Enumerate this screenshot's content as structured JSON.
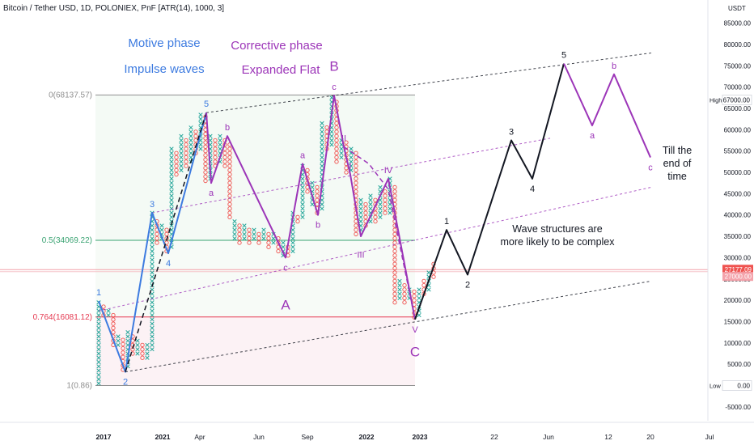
{
  "header": {
    "title": "Bitcoin / Tether USD, 1D, POLONIEX, PnF [ATR(14), 1000, 3]"
  },
  "colors": {
    "blue": "#3d7be0",
    "purple": "#9c35b8",
    "black": "#131722",
    "up": "#26a69a",
    "down": "#ef5350",
    "red_line": "#e53950",
    "green_line": "#3aa372"
  },
  "chart_data": {
    "type": "line",
    "title": "Bitcoin / Tether USD, 1D, POLONIEX, PnF [ATR(14), 1000, 3]",
    "currency_label": "USDT",
    "y_ticks": [
      "-5000.00",
      "0.00",
      "5000.00",
      "10000.00",
      "15000.00",
      "20000.00",
      "25000.00",
      "30000.00",
      "35000.00",
      "40000.00",
      "45000.00",
      "50000.00",
      "55000.00",
      "60000.00",
      "65000.00",
      "70000.00",
      "75000.00",
      "80000.00",
      "85000.00"
    ],
    "x_ticks": [
      "2017",
      "2021",
      "Apr",
      "Jun",
      "Sep",
      "2022",
      "2023",
      "22",
      "Jun",
      "12",
      "20",
      "Jul"
    ],
    "price_badges": [
      {
        "label": "High",
        "value": "67000.00",
        "y": 67000
      },
      {
        "label": "",
        "value": "27177.09",
        "y": 27177
      },
      {
        "label": "",
        "value": "27000.00",
        "y": 27000
      },
      {
        "label": "Low",
        "value": "0.00",
        "y": 0
      }
    ],
    "fib_levels": [
      {
        "label": "0(68137.57)",
        "value": 68137.57
      },
      {
        "label": "0.5(34069.22)",
        "value": 34069.22
      },
      {
        "label": "0.764(16081.12)",
        "value": 16081.12
      },
      {
        "label": "1(0.86)",
        "value": 0.86
      }
    ],
    "annotations": {
      "motive_phase": "Motive phase",
      "impulse_waves": "Impulse waves",
      "corrective_phase": "Corrective phase",
      "expanded_flat": "Expanded Flat",
      "wave_text_1": "Wave structures are",
      "wave_text_2": "more likely to be complex",
      "till_1": "Till the",
      "till_2": "end of",
      "till_3": "time"
    },
    "wave_labels": [
      {
        "text": "1",
        "color": "blue",
        "x": 122,
        "y": 19800,
        "pos": "above"
      },
      {
        "text": "2",
        "color": "blue",
        "x": 155,
        "y": 3200,
        "pos": "below"
      },
      {
        "text": "3",
        "color": "blue",
        "x": 188,
        "y": 40500,
        "pos": "above"
      },
      {
        "text": "4",
        "color": "blue",
        "x": 208,
        "y": 31000,
        "pos": "below"
      },
      {
        "text": "5",
        "color": "blue",
        "x": 255,
        "y": 64000,
        "pos": "above"
      },
      {
        "text": "a",
        "color": "purple",
        "x": 261,
        "y": 47500,
        "pos": "below"
      },
      {
        "text": "b",
        "color": "purple",
        "x": 281,
        "y": 58500,
        "pos": "above"
      },
      {
        "text": "c",
        "color": "purple",
        "x": 353,
        "y": 30000,
        "pos": "below"
      },
      {
        "text": "A",
        "color": "purple",
        "x": 353,
        "y": 22000,
        "pos": "below",
        "big": true
      },
      {
        "text": "a",
        "color": "purple",
        "x": 374,
        "y": 52000,
        "pos": "above"
      },
      {
        "text": "b",
        "color": "purple",
        "x": 393,
        "y": 40000,
        "pos": "below"
      },
      {
        "text": "c",
        "color": "purple",
        "x": 413,
        "y": 68000,
        "pos": "above"
      },
      {
        "text": "B",
        "color": "purple",
        "x": 413,
        "y": 72500,
        "pos": "above",
        "big": true
      },
      {
        "text": "II",
        "color": "purple",
        "x": 425,
        "y": 56000,
        "pos": "above"
      },
      {
        "text": "I",
        "color": "purple",
        "x": 433,
        "y": 49500,
        "pos": "above"
      },
      {
        "text": "IV",
        "color": "purple",
        "x": 480,
        "y": 48500,
        "pos": "above"
      },
      {
        "text": "III",
        "color": "purple",
        "x": 446,
        "y": 33000,
        "pos": "below"
      },
      {
        "text": "V",
        "color": "purple",
        "x": 513,
        "y": 15500,
        "pos": "below"
      },
      {
        "text": "C",
        "color": "purple",
        "x": 513,
        "y": 11000,
        "pos": "below",
        "big": true
      },
      {
        "text": "1",
        "color": "black",
        "x": 552,
        "y": 36500,
        "pos": "above"
      },
      {
        "text": "2",
        "color": "black",
        "x": 578,
        "y": 26000,
        "pos": "below"
      },
      {
        "text": "3",
        "color": "black",
        "x": 632,
        "y": 57500,
        "pos": "above"
      },
      {
        "text": "4",
        "color": "black",
        "x": 658,
        "y": 48500,
        "pos": "below"
      },
      {
        "text": "5",
        "color": "black",
        "x": 697,
        "y": 75500,
        "pos": "above"
      },
      {
        "text": "a",
        "color": "purple",
        "x": 732,
        "y": 61000,
        "pos": "below"
      },
      {
        "text": "b",
        "color": "purple",
        "x": 759,
        "y": 73000,
        "pos": "above"
      },
      {
        "text": "c",
        "color": "purple",
        "x": 804,
        "y": 53500,
        "pos": "below"
      }
    ],
    "series": [
      {
        "color": "blue",
        "style": "solid",
        "points": [
          [
            122,
            19800
          ],
          [
            155,
            3200
          ],
          [
            188,
            40500
          ],
          [
            208,
            31000
          ],
          [
            255,
            64000
          ]
        ]
      },
      {
        "color": "black",
        "style": "dashed",
        "points": [
          [
            155,
            3200
          ],
          [
            255,
            64000
          ]
        ]
      },
      {
        "color": "purple",
        "style": "solid",
        "points": [
          [
            255,
            64000
          ],
          [
            261,
            47500
          ],
          [
            281,
            58500
          ],
          [
            353,
            30000
          ],
          [
            374,
            52000
          ],
          [
            393,
            40000
          ],
          [
            413,
            68000
          ],
          [
            425,
            56000
          ],
          [
            433,
            49500
          ],
          [
            446,
            35000
          ],
          [
            480,
            48500
          ],
          [
            513,
            15500
          ]
        ]
      },
      {
        "color": "purple",
        "style": "dashed",
        "points": [
          [
            425,
            56000
          ],
          [
            456,
            52000
          ],
          [
            480,
            46000
          ],
          [
            513,
            15500
          ]
        ]
      },
      {
        "color": "black",
        "style": "solid",
        "points": [
          [
            513,
            15500
          ],
          [
            552,
            36500
          ],
          [
            578,
            26000
          ],
          [
            632,
            57500
          ],
          [
            658,
            48500
          ],
          [
            697,
            75500
          ]
        ]
      },
      {
        "color": "purple",
        "style": "solid",
        "points": [
          [
            697,
            75500
          ],
          [
            732,
            61000
          ],
          [
            759,
            73000
          ],
          [
            804,
            53500
          ]
        ]
      }
    ],
    "channels": [
      {
        "color": "black",
        "style": "dashed",
        "points": [
          [
            155,
            3200
          ],
          [
            805,
            24500
          ]
        ]
      },
      {
        "color": "black",
        "style": "dashed",
        "points": [
          [
            255,
            64000
          ],
          [
            805,
            78000
          ]
        ]
      },
      {
        "color": "purple",
        "style": "dashed",
        "points": [
          [
            122,
            17500
          ],
          [
            805,
            46500
          ]
        ]
      },
      {
        "color": "purple",
        "style": "dashed",
        "points": [
          [
            188,
            40500
          ],
          [
            680,
            58000
          ]
        ]
      }
    ],
    "pnf_columns": [
      {
        "x": 122,
        "type": "X",
        "lo": 0,
        "hi": 19800
      },
      {
        "x": 128,
        "type": "O",
        "lo": 16000,
        "hi": 19000
      },
      {
        "x": 134,
        "type": "X",
        "lo": 16000,
        "hi": 18000
      },
      {
        "x": 140,
        "type": "O",
        "lo": 9000,
        "hi": 17000
      },
      {
        "x": 146,
        "type": "X",
        "lo": 9000,
        "hi": 12000
      },
      {
        "x": 152,
        "type": "O",
        "lo": 3200,
        "hi": 11000
      },
      {
        "x": 158,
        "type": "X",
        "lo": 4000,
        "hi": 13000
      },
      {
        "x": 164,
        "type": "O",
        "lo": 7000,
        "hi": 12000
      },
      {
        "x": 170,
        "type": "X",
        "lo": 7000,
        "hi": 11000
      },
      {
        "x": 176,
        "type": "O",
        "lo": 6000,
        "hi": 10000
      },
      {
        "x": 182,
        "type": "X",
        "lo": 6000,
        "hi": 10000
      },
      {
        "x": 188,
        "type": "X",
        "lo": 8000,
        "hi": 40500
      },
      {
        "x": 194,
        "type": "O",
        "lo": 33000,
        "hi": 39000
      },
      {
        "x": 200,
        "type": "X",
        "lo": 34000,
        "hi": 38000
      },
      {
        "x": 206,
        "type": "O",
        "lo": 31000,
        "hi": 37000
      },
      {
        "x": 212,
        "type": "X",
        "lo": 32000,
        "hi": 56000
      },
      {
        "x": 218,
        "type": "O",
        "lo": 49000,
        "hi": 55000
      },
      {
        "x": 224,
        "type": "X",
        "lo": 50000,
        "hi": 59000
      },
      {
        "x": 230,
        "type": "O",
        "lo": 51000,
        "hi": 58000
      },
      {
        "x": 236,
        "type": "X",
        "lo": 52000,
        "hi": 61000
      },
      {
        "x": 242,
        "type": "O",
        "lo": 54000,
        "hi": 60000
      },
      {
        "x": 248,
        "type": "X",
        "lo": 55000,
        "hi": 64000
      },
      {
        "x": 254,
        "type": "O",
        "lo": 47500,
        "hi": 63000
      },
      {
        "x": 260,
        "type": "X",
        "lo": 48000,
        "hi": 59000
      },
      {
        "x": 266,
        "type": "O",
        "lo": 51000,
        "hi": 58000
      },
      {
        "x": 272,
        "type": "X",
        "lo": 52000,
        "hi": 58500
      },
      {
        "x": 278,
        "type": "O",
        "lo": 51000,
        "hi": 58000
      },
      {
        "x": 284,
        "type": "O",
        "lo": 39000,
        "hi": 57000
      },
      {
        "x": 290,
        "type": "X",
        "lo": 34000,
        "hi": 39000
      },
      {
        "x": 296,
        "type": "O",
        "lo": 33000,
        "hi": 38000
      },
      {
        "x": 302,
        "type": "X",
        "lo": 34000,
        "hi": 38000
      },
      {
        "x": 308,
        "type": "O",
        "lo": 33000,
        "hi": 37000
      },
      {
        "x": 314,
        "type": "X",
        "lo": 34000,
        "hi": 37000
      },
      {
        "x": 320,
        "type": "O",
        "lo": 33000,
        "hi": 36000
      },
      {
        "x": 326,
        "type": "X",
        "lo": 34000,
        "hi": 37000
      },
      {
        "x": 332,
        "type": "O",
        "lo": 32000,
        "hi": 36000
      },
      {
        "x": 338,
        "type": "X",
        "lo": 33000,
        "hi": 36000
      },
      {
        "x": 344,
        "type": "O",
        "lo": 31000,
        "hi": 35000
      },
      {
        "x": 350,
        "type": "X",
        "lo": 30000,
        "hi": 34000
      },
      {
        "x": 356,
        "type": "O",
        "lo": 30000,
        "hi": 33000
      },
      {
        "x": 362,
        "type": "X",
        "lo": 31000,
        "hi": 41000
      },
      {
        "x": 368,
        "type": "O",
        "lo": 38000,
        "hi": 40000
      },
      {
        "x": 374,
        "type": "X",
        "lo": 39000,
        "hi": 52000
      },
      {
        "x": 380,
        "type": "O",
        "lo": 45000,
        "hi": 51000
      },
      {
        "x": 386,
        "type": "X",
        "lo": 42000,
        "hi": 48000
      },
      {
        "x": 392,
        "type": "O",
        "lo": 40000,
        "hi": 47000
      },
      {
        "x": 398,
        "type": "X",
        "lo": 41000,
        "hi": 62000
      },
      {
        "x": 404,
        "type": "O",
        "lo": 55000,
        "hi": 61000
      },
      {
        "x": 410,
        "type": "X",
        "lo": 56000,
        "hi": 68000
      },
      {
        "x": 416,
        "type": "O",
        "lo": 52000,
        "hi": 67000
      },
      {
        "x": 422,
        "type": "X",
        "lo": 53000,
        "hi": 58000
      },
      {
        "x": 428,
        "type": "O",
        "lo": 49500,
        "hi": 57000
      },
      {
        "x": 434,
        "type": "X",
        "lo": 50000,
        "hi": 56000
      },
      {
        "x": 440,
        "type": "O",
        "lo": 35000,
        "hi": 55000
      },
      {
        "x": 446,
        "type": "X",
        "lo": 36000,
        "hi": 44000
      },
      {
        "x": 452,
        "type": "O",
        "lo": 37000,
        "hi": 43000
      },
      {
        "x": 458,
        "type": "X",
        "lo": 38000,
        "hi": 45000
      },
      {
        "x": 464,
        "type": "O",
        "lo": 38000,
        "hi": 44000
      },
      {
        "x": 470,
        "type": "X",
        "lo": 39000,
        "hi": 47000
      },
      {
        "x": 476,
        "type": "O",
        "lo": 40000,
        "hi": 46000
      },
      {
        "x": 482,
        "type": "X",
        "lo": 40000,
        "hi": 48500
      },
      {
        "x": 488,
        "type": "O",
        "lo": 19000,
        "hi": 47000
      },
      {
        "x": 494,
        "type": "X",
        "lo": 20000,
        "hi": 25000
      },
      {
        "x": 500,
        "type": "O",
        "lo": 19000,
        "hi": 24000
      },
      {
        "x": 506,
        "type": "X",
        "lo": 20000,
        "hi": 23000
      },
      {
        "x": 512,
        "type": "O",
        "lo": 15500,
        "hi": 22000
      },
      {
        "x": 518,
        "type": "X",
        "lo": 16000,
        "hi": 23000
      },
      {
        "x": 524,
        "type": "O",
        "lo": 21000,
        "hi": 25000
      },
      {
        "x": 530,
        "type": "X",
        "lo": 22000,
        "hi": 27000
      },
      {
        "x": 536,
        "type": "O",
        "lo": 25000,
        "hi": 29000
      }
    ]
  }
}
